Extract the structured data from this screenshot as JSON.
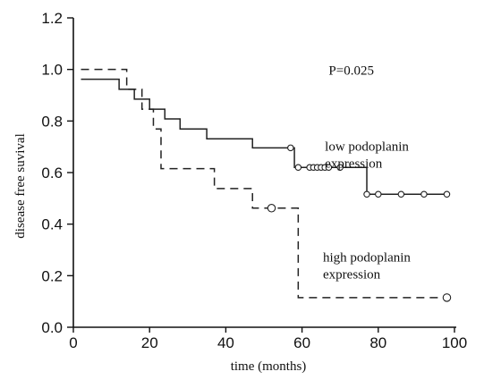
{
  "chart_data": {
    "type": "line",
    "title": "",
    "xlabel": "time (months)",
    "ylabel": "disease free suvival",
    "xlim": [
      0,
      100
    ],
    "ylim": [
      0.0,
      1.2
    ],
    "xticks": [
      0,
      20,
      40,
      60,
      80,
      100
    ],
    "yticks": [
      0.0,
      0.2,
      0.4,
      0.6,
      0.8,
      1.0,
      1.2
    ],
    "xtick_labels": [
      "0",
      "20",
      "40",
      "60",
      "80",
      "100"
    ],
    "ytick_labels": [
      "0.0",
      "0.2",
      "0.4",
      "0.6",
      "0.8",
      "1.0",
      "1.2"
    ],
    "grid": false,
    "annotations": [
      {
        "text": "P=0.025",
        "x": 67,
        "y": 0.98
      }
    ],
    "series": [
      {
        "name_lines": [
          "low podoplanin",
          "expression"
        ],
        "style": "solid",
        "label_anchor": {
          "x": 66,
          "y": 0.685
        },
        "steps": [
          [
            2,
            0.962
          ],
          [
            12,
            0.923
          ],
          [
            16,
            0.885
          ],
          [
            20,
            0.846
          ],
          [
            24,
            0.808
          ],
          [
            28,
            0.769
          ],
          [
            35,
            0.731
          ],
          [
            47,
            0.696
          ],
          [
            58,
            0.62
          ],
          [
            77,
            0.516
          ],
          [
            98,
            0.516
          ]
        ],
        "censored": [
          [
            57,
            0.696
          ],
          [
            59,
            0.62
          ],
          [
            62,
            0.62
          ],
          [
            63,
            0.62
          ],
          [
            64,
            0.62
          ],
          [
            65,
            0.62
          ],
          [
            66,
            0.62
          ],
          [
            67,
            0.62
          ],
          [
            70,
            0.62
          ],
          [
            77,
            0.516
          ],
          [
            80,
            0.516
          ],
          [
            86,
            0.516
          ],
          [
            92,
            0.516
          ],
          [
            98,
            0.516
          ]
        ]
      },
      {
        "name_lines": [
          "high podoplanin",
          "expression"
        ],
        "style": "dashed",
        "label_anchor": {
          "x": 65.5,
          "y": 0.255
        },
        "steps": [
          [
            2,
            1.0
          ],
          [
            14,
            0.923
          ],
          [
            18,
            0.846
          ],
          [
            21,
            0.769
          ],
          [
            23,
            0.615
          ],
          [
            37,
            0.538
          ],
          [
            47,
            0.462
          ],
          [
            56,
            0.462
          ],
          [
            59,
            0.115
          ],
          [
            98,
            0.115
          ]
        ],
        "censored": [
          [
            52,
            0.462
          ],
          [
            98,
            0.115
          ]
        ]
      }
    ]
  }
}
